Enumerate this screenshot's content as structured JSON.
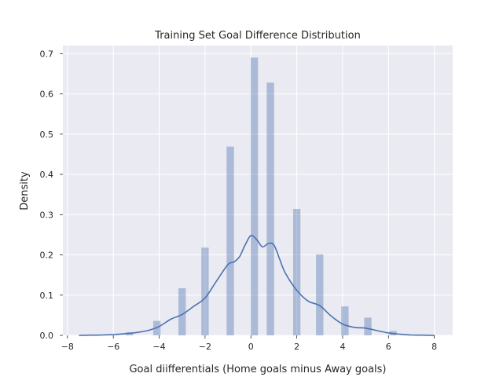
{
  "chart_data": {
    "type": "bar",
    "title": "Training Set Goal Difference Distribution",
    "xlabel": "Goal diifferentials (Home goals minus Away goals)",
    "ylabel": "Density",
    "xlim": [
      -8.2,
      8.8
    ],
    "ylim": [
      0,
      0.72
    ],
    "xticks": [
      -8,
      -6,
      -4,
      -2,
      0,
      2,
      4,
      6,
      8
    ],
    "yticks": [
      0.0,
      0.1,
      0.2,
      0.3,
      0.4,
      0.5,
      0.6,
      0.7
    ],
    "ytick_labels": [
      "0.0",
      "0.1",
      "0.2",
      "0.3",
      "0.4",
      "0.5",
      "0.6",
      "0.7"
    ],
    "grid": true,
    "bar_width": 0.32,
    "histogram": {
      "x": [
        -5.3,
        -4.1,
        -3.0,
        -2.0,
        -0.9,
        0.15,
        0.85,
        2.0,
        3.0,
        4.1,
        5.1,
        6.2
      ],
      "values": [
        0.008,
        0.036,
        0.117,
        0.218,
        0.469,
        0.69,
        0.628,
        0.314,
        0.201,
        0.072,
        0.044,
        0.011
      ]
    },
    "kde": {
      "x": [
        -7.5,
        -7.0,
        -6.5,
        -6.0,
        -5.5,
        -5.0,
        -4.5,
        -4.0,
        -3.5,
        -3.0,
        -2.5,
        -2.0,
        -1.5,
        -1.0,
        -0.75,
        -0.5,
        -0.25,
        0.0,
        0.25,
        0.5,
        0.75,
        1.0,
        1.25,
        1.5,
        2.0,
        2.5,
        3.0,
        3.5,
        4.0,
        4.5,
        5.0,
        5.5,
        6.0,
        6.5,
        7.0,
        7.5,
        8.0
      ],
      "y": [
        0.0,
        0.0005,
        0.001,
        0.002,
        0.004,
        0.007,
        0.012,
        0.022,
        0.04,
        0.052,
        0.072,
        0.093,
        0.135,
        0.176,
        0.182,
        0.195,
        0.225,
        0.248,
        0.238,
        0.22,
        0.228,
        0.225,
        0.19,
        0.155,
        0.112,
        0.085,
        0.074,
        0.048,
        0.028,
        0.02,
        0.018,
        0.012,
        0.006,
        0.003,
        0.001,
        0.0005,
        0.0
      ]
    },
    "colors": {
      "bar": "#4c72b0",
      "line": "#4c72b0",
      "plot_bg": "#eaeaf2",
      "grid": "#ffffff",
      "text": "#262626"
    }
  }
}
